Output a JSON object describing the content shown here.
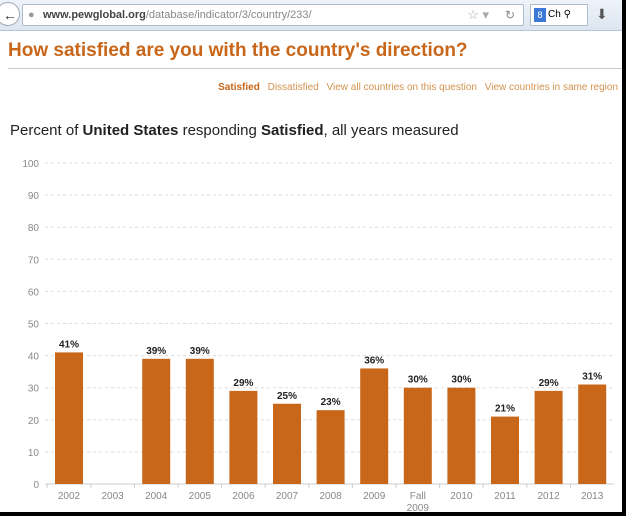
{
  "browser": {
    "url_domain": "www.pewglobal.org",
    "url_path": "/database/indicator/3/country/233/",
    "search_text": "Ch",
    "search_engine": "8"
  },
  "page": {
    "title": "How satisfied are you with the country's direction?",
    "links": [
      {
        "label": "Satisfied",
        "active": true
      },
      {
        "label": "Dissatisfied"
      },
      {
        "label": "View all countries on this question"
      },
      {
        "label": "View countries in same region"
      }
    ],
    "subtitle": {
      "prefix": "Percent of ",
      "country": "United States",
      "middle": " responding ",
      "response": "Satisfied",
      "suffix": ", all years measured"
    }
  },
  "colors": {
    "bar": "#c8661a",
    "title": "#c8661a"
  },
  "chart_data": {
    "type": "bar",
    "title": "Percent of United States responding Satisfied, all years measured",
    "categories": [
      "2002",
      "2003",
      "2004",
      "2005",
      "2006",
      "2007",
      "2008",
      "2009",
      "Fall 2009",
      "2010",
      "2011",
      "2012",
      "2013"
    ],
    "values": [
      41,
      null,
      39,
      39,
      29,
      25,
      23,
      36,
      30,
      30,
      21,
      29,
      31
    ],
    "data_labels": [
      "41%",
      "",
      "39%",
      "39%",
      "29%",
      "25%",
      "23%",
      "36%",
      "30%",
      "30%",
      "21%",
      "29%",
      "31%"
    ],
    "ylim": [
      0,
      100
    ],
    "yticks": [
      0,
      10,
      20,
      30,
      40,
      50,
      60,
      70,
      80,
      90,
      100
    ],
    "grid": true,
    "xlabel": "",
    "ylabel": ""
  }
}
